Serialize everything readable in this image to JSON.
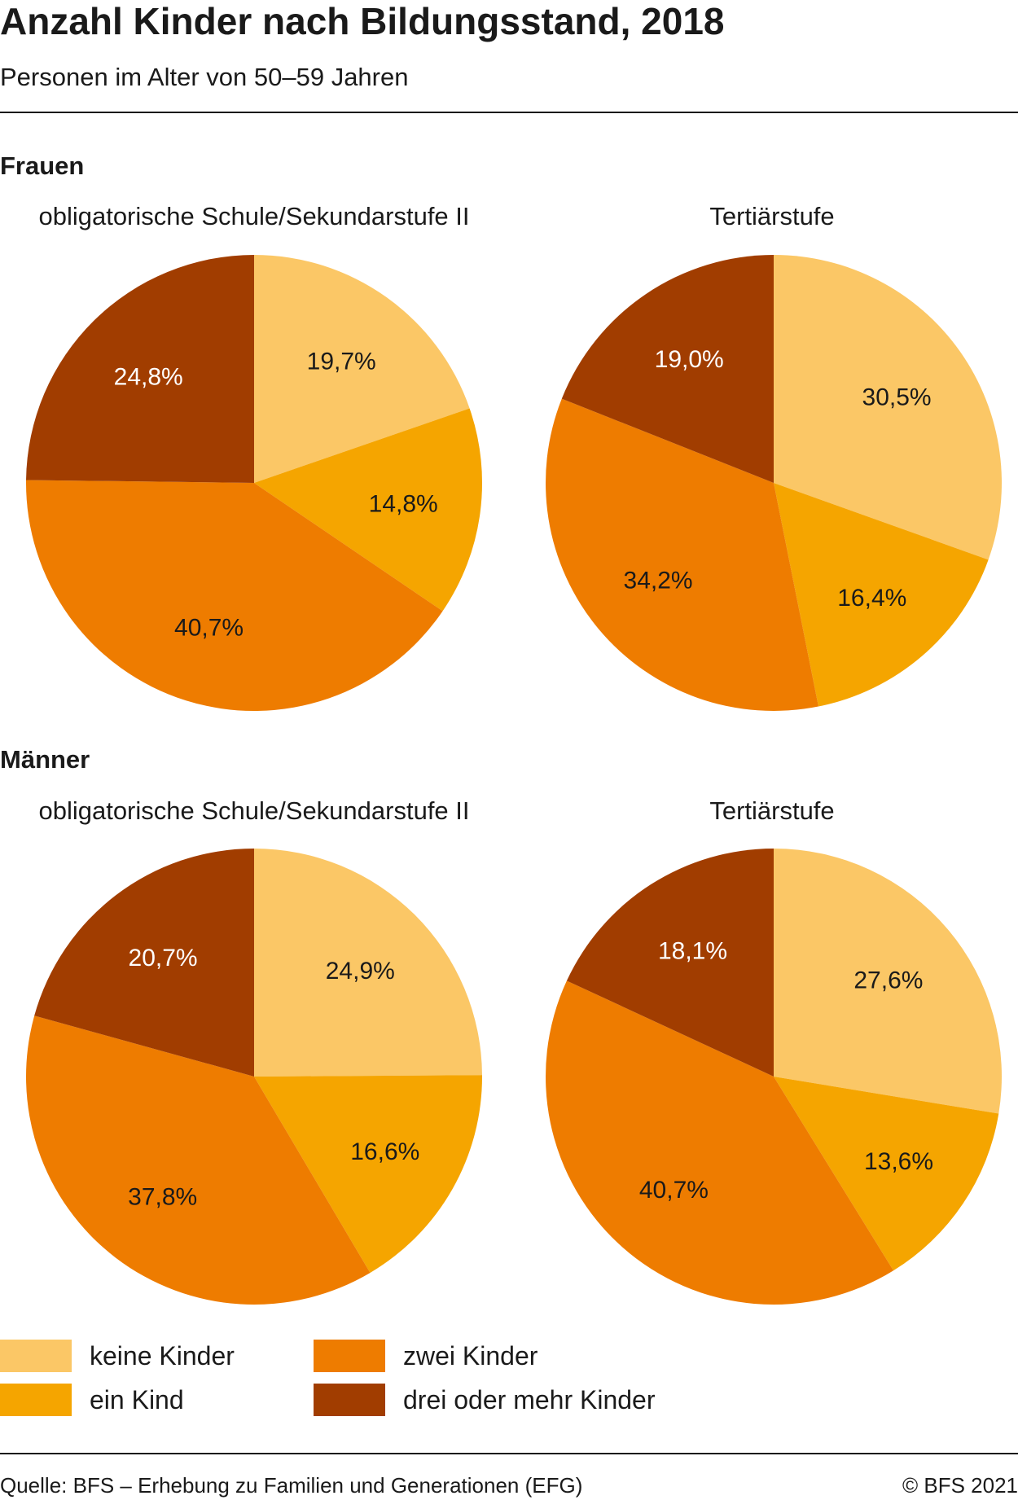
{
  "header": {
    "title": "Anzahl Kinder nach Bildungsstand, 2018",
    "subtitle": "Personen im Alter von 50–59 Jahren"
  },
  "sections": [
    {
      "label": "Frauen"
    },
    {
      "label": "Männer"
    }
  ],
  "colors": {
    "keine Kinder": "#FBC766",
    "ein Kind": "#F5A500",
    "zwei Kinder": "#EE7C00",
    "drei oder mehr Kinder": "#A13D00"
  },
  "chart_data": [
    {
      "type": "pie",
      "group": "Frauen",
      "title": "obligatorische Schule/Sekundarstufe II",
      "slices": [
        {
          "label": "keine Kinder",
          "value": 19.7,
          "display": "19,7%"
        },
        {
          "label": "ein Kind",
          "value": 14.8,
          "display": "14,8%"
        },
        {
          "label": "zwei Kinder",
          "value": 40.7,
          "display": "40,7%"
        },
        {
          "label": "drei oder mehr Kinder",
          "value": 24.8,
          "display": "24,8%"
        }
      ]
    },
    {
      "type": "pie",
      "group": "Frauen",
      "title": "Tertiärstufe",
      "slices": [
        {
          "label": "keine Kinder",
          "value": 30.5,
          "display": "30,5%"
        },
        {
          "label": "ein Kind",
          "value": 16.4,
          "display": "16,4%"
        },
        {
          "label": "zwei Kinder",
          "value": 34.2,
          "display": "34,2%"
        },
        {
          "label": "drei oder mehr Kinder",
          "value": 19.0,
          "display": "19,0%"
        }
      ]
    },
    {
      "type": "pie",
      "group": "Männer",
      "title": "obligatorische Schule/Sekundarstufe II",
      "slices": [
        {
          "label": "keine Kinder",
          "value": 24.9,
          "display": "24,9%"
        },
        {
          "label": "ein Kind",
          "value": 16.6,
          "display": "16,6%"
        },
        {
          "label": "zwei Kinder",
          "value": 37.8,
          "display": "37,8%"
        },
        {
          "label": "drei oder mehr Kinder",
          "value": 20.7,
          "display": "20,7%"
        }
      ]
    },
    {
      "type": "pie",
      "group": "Männer",
      "title": "Tertiärstufe",
      "slices": [
        {
          "label": "keine Kinder",
          "value": 27.6,
          "display": "27,6%"
        },
        {
          "label": "ein Kind",
          "value": 13.6,
          "display": "13,6%"
        },
        {
          "label": "zwei Kinder",
          "value": 40.7,
          "display": "40,7%"
        },
        {
          "label": "drei oder mehr Kinder",
          "value": 18.1,
          "display": "18,1%"
        }
      ]
    }
  ],
  "legend": {
    "items": [
      "keine Kinder",
      "ein Kind",
      "zwei Kinder",
      "drei oder mehr Kinder"
    ]
  },
  "footer": {
    "source": "Quelle: BFS – Erhebung zu Familien und Generationen (EFG)",
    "copyright": "© BFS 2021"
  }
}
